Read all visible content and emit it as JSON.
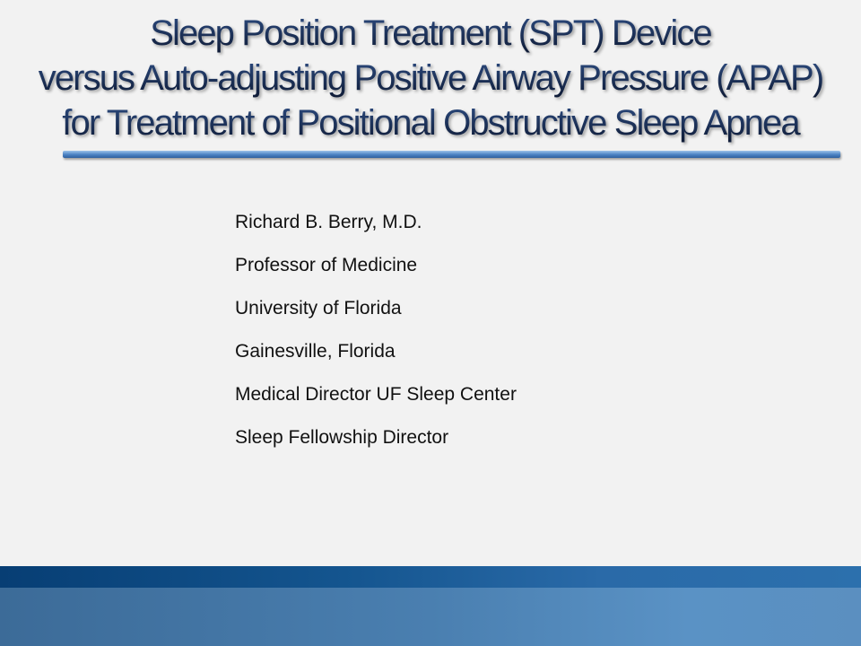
{
  "title": {
    "lines": [
      "Sleep Position Treatment (SPT) Device",
      "versus Auto-adjusting Positive Airway Pressure (APAP)",
      "for Treatment of Positional Obstructive Sleep Apnea"
    ]
  },
  "presenter": {
    "lines": [
      "Richard B. Berry, M.D.",
      "Professor of Medicine",
      "University of Florida",
      "Gainesville, Florida",
      "Medical Director UF Sleep Center",
      "Sleep Fellowship Director"
    ]
  },
  "colors": {
    "background": "#f2f2f2",
    "accent": "#4f86c6",
    "band": "#14558f",
    "title": "#14223f"
  }
}
